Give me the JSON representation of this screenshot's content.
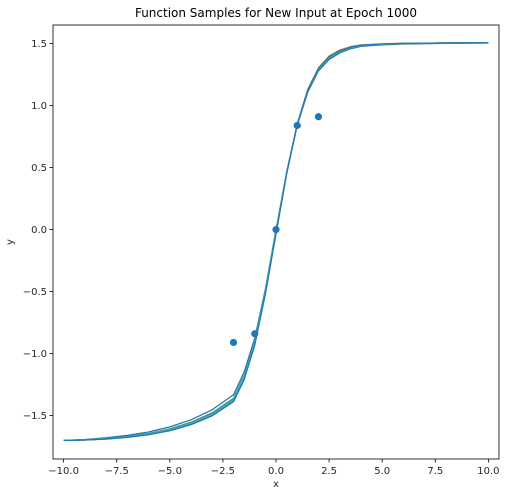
{
  "chart_data": {
    "type": "line",
    "title": "Function Samples for New Input at Epoch 1000",
    "xlabel": "x",
    "ylabel": "y",
    "xlim": [
      -10.5,
      10.5
    ],
    "ylim": [
      -1.85,
      1.65
    ],
    "x_ticks": [
      -10.0,
      -7.5,
      -5.0,
      -2.5,
      0.0,
      2.5,
      5.0,
      7.5,
      10.0
    ],
    "x_tick_labels": [
      "−10.0",
      "−7.5",
      "−5.0",
      "−2.5",
      "0.0",
      "2.5",
      "5.0",
      "7.5",
      "10.0"
    ],
    "y_ticks": [
      -1.5,
      -1.0,
      -0.5,
      0.0,
      0.5,
      1.0,
      1.5
    ],
    "y_tick_labels": [
      "−1.5",
      "−1.0",
      "−0.5",
      "0.0",
      "0.5",
      "1.0",
      "1.5"
    ],
    "grid": false,
    "series": [
      {
        "color": "#1f77b4",
        "values": [
          -1.7,
          -1.693,
          -1.679,
          -1.66,
          -1.632,
          -1.591,
          -1.534,
          -1.452,
          -1.332,
          -1.15,
          -0.875,
          -0.48,
          0.0,
          0.46,
          0.84,
          1.11,
          1.28,
          1.372,
          1.425,
          1.458,
          1.478,
          1.49,
          1.497,
          1.502,
          1.505
        ]
      },
      {
        "color": "#ff7f0e",
        "values": [
          -1.7,
          -1.695,
          -1.686,
          -1.671,
          -1.648,
          -1.614,
          -1.562,
          -1.487,
          -1.37,
          -1.19,
          -0.91,
          -0.5,
          -0.02,
          0.46,
          0.85,
          1.13,
          1.305,
          1.4,
          1.448,
          1.475,
          1.49,
          1.498,
          1.503,
          1.506,
          1.507
        ]
      },
      {
        "color": "#2ca02c",
        "values": [
          -1.7,
          -1.696,
          -1.685,
          -1.668,
          -1.644,
          -1.607,
          -1.554,
          -1.477,
          -1.36,
          -1.18,
          -0.9,
          -0.495,
          -0.015,
          0.46,
          0.845,
          1.12,
          1.29,
          1.385,
          1.435,
          1.465,
          1.483,
          1.494,
          1.5,
          1.504,
          1.506
        ]
      },
      {
        "color": "#d62728",
        "values": [
          -1.7,
          -1.697,
          -1.688,
          -1.673,
          -1.651,
          -1.617,
          -1.566,
          -1.492,
          -1.376,
          -1.195,
          -0.915,
          -0.505,
          -0.025,
          0.455,
          0.85,
          1.128,
          1.298,
          1.39,
          1.44,
          1.469,
          1.486,
          1.496,
          1.502,
          1.505,
          1.507
        ]
      },
      {
        "color": "#9467bd",
        "values": [
          -1.7,
          -1.696,
          -1.686,
          -1.67,
          -1.647,
          -1.611,
          -1.559,
          -1.482,
          -1.366,
          -1.186,
          -0.905,
          -0.498,
          -0.018,
          0.458,
          0.847,
          1.124,
          1.294,
          1.387,
          1.437,
          1.467,
          1.484,
          1.495,
          1.501,
          1.505,
          1.506
        ]
      },
      {
        "color": "#8c564b",
        "values": [
          -1.7,
          -1.697,
          -1.687,
          -1.672,
          -1.649,
          -1.614,
          -1.563,
          -1.488,
          -1.372,
          -1.19,
          -0.91,
          -0.502,
          -0.022,
          0.456,
          0.848,
          1.126,
          1.296,
          1.388,
          1.438,
          1.468,
          1.485,
          1.495,
          1.501,
          1.505,
          1.507
        ]
      },
      {
        "color": "#e377c2",
        "values": [
          -1.7,
          -1.696,
          -1.687,
          -1.671,
          -1.648,
          -1.613,
          -1.561,
          -1.485,
          -1.369,
          -1.188,
          -0.908,
          -0.5,
          -0.02,
          0.457,
          0.848,
          1.125,
          1.295,
          1.388,
          1.438,
          1.468,
          1.485,
          1.495,
          1.501,
          1.505,
          1.506
        ]
      },
      {
        "color": "#7f7f7f",
        "values": [
          -1.7,
          -1.696,
          -1.686,
          -1.671,
          -1.648,
          -1.612,
          -1.56,
          -1.484,
          -1.368,
          -1.187,
          -0.907,
          -0.499,
          -0.019,
          0.457,
          0.847,
          1.124,
          1.294,
          1.387,
          1.437,
          1.467,
          1.484,
          1.495,
          1.501,
          1.505,
          1.506
        ]
      },
      {
        "color": "#bcbd22",
        "values": [
          -1.7,
          -1.697,
          -1.688,
          -1.673,
          -1.651,
          -1.618,
          -1.567,
          -1.494,
          -1.378,
          -1.198,
          -0.918,
          -0.508,
          -0.028,
          0.452,
          0.848,
          1.127,
          1.298,
          1.39,
          1.44,
          1.469,
          1.486,
          1.496,
          1.502,
          1.505,
          1.507
        ]
      },
      {
        "color": "#17becf",
        "values": [
          -1.7,
          -1.697,
          -1.687,
          -1.672,
          -1.65,
          -1.616,
          -1.565,
          -1.491,
          -1.375,
          -1.194,
          -0.914,
          -0.504,
          -0.024,
          0.455,
          0.849,
          1.127,
          1.297,
          1.389,
          1.439,
          1.468,
          1.485,
          1.496,
          1.501,
          1.505,
          1.507
        ]
      },
      {
        "color": "#1f77b4",
        "values": [
          -1.7,
          -1.697,
          -1.689,
          -1.675,
          -1.654,
          -1.622,
          -1.573,
          -1.501,
          -1.388,
          -1.21,
          -0.932,
          -0.52,
          -0.035,
          0.448,
          0.848,
          1.13,
          1.302,
          1.394,
          1.443,
          1.471,
          1.488,
          1.497,
          1.502,
          1.505,
          1.507
        ]
      }
    ],
    "series_x": [
      -10,
      -9,
      -8,
      -7,
      -6,
      -5,
      -4,
      -3,
      -2,
      -1.5,
      -1,
      -0.5,
      0,
      0.5,
      1,
      1.5,
      2,
      2.5,
      3,
      3.5,
      4,
      5,
      6,
      8,
      10
    ],
    "scatter": {
      "color": "#1f77b4",
      "points": [
        {
          "x": -2.0,
          "y": -0.91
        },
        {
          "x": -1.0,
          "y": -0.84
        },
        {
          "x": 0.0,
          "y": 0.0
        },
        {
          "x": 1.0,
          "y": 0.84
        },
        {
          "x": 2.0,
          "y": 0.91
        }
      ]
    }
  }
}
